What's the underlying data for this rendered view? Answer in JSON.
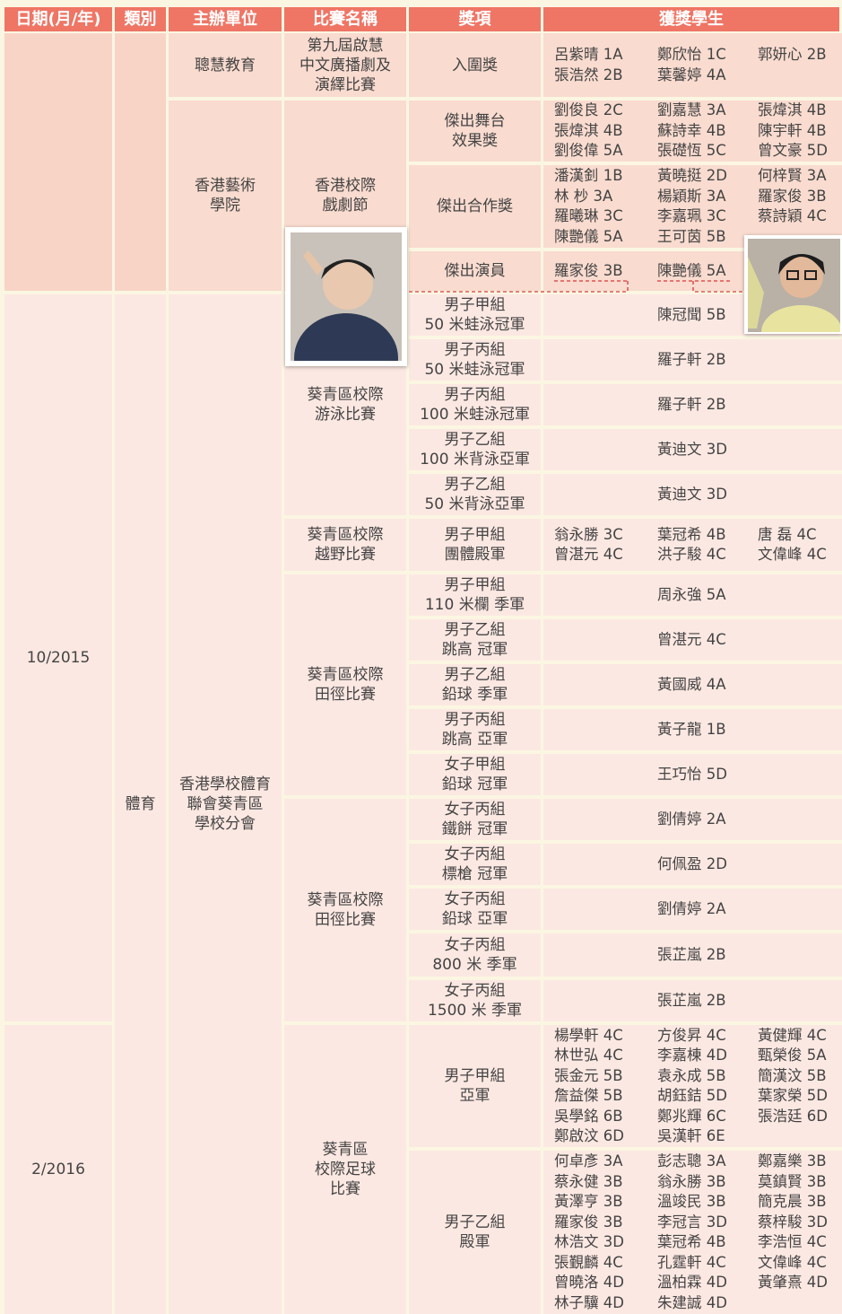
{
  "header": [
    "日期(月/年)",
    "類別",
    "主辦單位",
    "比賽名稱",
    "獎項",
    "獲獎學生"
  ],
  "dates": [
    "10/2015",
    "2/2016"
  ],
  "category": [
    "體育"
  ],
  "organizers": [
    "聰慧教育",
    "香港藝術\n學院",
    "香港學校體育\n聯會葵青區\n學校分會"
  ],
  "competitions": [
    "第九屆啟慧\n中文廣播劇及\n演繹比賽",
    "香港校際\n戲劇節",
    "葵青區校際\n游泳比賽",
    "葵青區校際\n越野比賽",
    "葵青區校際\n田徑比賽",
    "葵青區校際\n田徑比賽",
    "葵青區\n校際足球\n比賽"
  ],
  "rows": [
    {
      "award": "入圍獎",
      "students": [
        "呂紫晴 1A",
        "鄭欣怡 1C",
        "郭妍心 2B",
        "張浩然 2B",
        "葉馨婷 4A"
      ]
    },
    {
      "award": "傑出舞台\n效果獎",
      "students": [
        "劉俊良 2C",
        "劉嘉慧 3A",
        "張煒淇 4B",
        "張煒淇 4B",
        "蘇詩幸 4B",
        "陳宇軒 4B",
        "劉俊偉 5A",
        "張礎恆 5C",
        "曾文豪 5D"
      ]
    },
    {
      "award": "傑出合作獎",
      "students": [
        "潘漢釗 1B",
        "黃曉挺 2D",
        "何梓賢 3A",
        "林 杪 3A",
        "楊穎斯 3A",
        "羅家俊 3B",
        "羅曦琳 3C",
        "李嘉珮 3C",
        "蔡詩穎 4C",
        "陳艷儀 5A",
        "王可茵 5B"
      ]
    },
    {
      "award": "傑出演員",
      "students": [
        "羅家俊 3B",
        "陳艷儀 5A"
      ]
    },
    {
      "award": "男子甲組\n50 米蛙泳冠軍",
      "students": [
        "陳冠聞 5B"
      ]
    },
    {
      "award": "男子丙組\n50 米蛙泳冠軍",
      "students": [
        "羅子軒 2B"
      ]
    },
    {
      "award": "男子丙組\n100 米蛙泳冠軍",
      "students": [
        "羅子軒 2B"
      ]
    },
    {
      "award": "男子乙組\n100 米背泳亞軍",
      "students": [
        "黃迪文 3D"
      ]
    },
    {
      "award": "男子乙組\n50 米背泳亞軍",
      "students": [
        "黃迪文 3D"
      ]
    },
    {
      "award": "男子甲組\n團體殿軍",
      "students": [
        "翁永勝 3C",
        "葉冠希 4B",
        "唐 磊 4C",
        "曾湛元 4C",
        "洪子駿 4C",
        "文偉峰 4C"
      ]
    },
    {
      "award": "男子甲組\n110 米欄 季軍",
      "students": [
        "周永強 5A"
      ]
    },
    {
      "award": "男子乙組\n跳高 冠軍",
      "students": [
        "曾湛元 4C"
      ]
    },
    {
      "award": "男子乙組\n鉛球 季軍",
      "students": [
        "黃國威 4A"
      ]
    },
    {
      "award": "男子丙組\n跳高 亞軍",
      "students": [
        "黃子龍 1B"
      ]
    },
    {
      "award": "女子甲組\n鉛球 冠軍",
      "students": [
        "王巧怡 5D"
      ]
    },
    {
      "award": "女子丙組\n鐵餅 冠軍",
      "students": [
        "劉倩婷 2A"
      ]
    },
    {
      "award": "女子丙組\n標槍 冠軍",
      "students": [
        "何佩盈 2D"
      ]
    },
    {
      "award": "女子丙組\n鉛球 亞軍",
      "students": [
        "劉倩婷 2A"
      ]
    },
    {
      "award": "女子丙組\n800 米 季軍",
      "students": [
        "張芷嵐 2B"
      ]
    },
    {
      "award": "女子丙組\n1500 米 季軍",
      "students": [
        "張芷嵐 2B"
      ]
    },
    {
      "award": "男子甲組\n亞軍",
      "students": [
        "楊學軒 4C",
        "方俊昇 4C",
        "黃健輝 4C",
        "林世弘 4C",
        "李嘉棟 4D",
        "甄榮俊 5A",
        "張金元 5B",
        "袁永成 5B",
        "簡漢汶 5B",
        "詹益傑 5B",
        "胡鈺銡 5D",
        "葉家榮 5D",
        "吳學銘 6B",
        "鄭兆輝 6C",
        "張浩廷 6D",
        "鄭啟汶 6D",
        "吳漢軒 6E"
      ]
    },
    {
      "award": "男子乙組\n殿軍",
      "students": [
        "何卓彥 3A",
        "彭志聰 3A",
        "鄭嘉樂 3B",
        "蔡永健 3B",
        "翁永勝 3B",
        "莫鎮賢 3B",
        "黃澤亨 3B",
        "溫竣民 3B",
        "簡克晨 3B",
        "羅家俊 3B",
        "李冠言 3D",
        "蔡梓駿 3D",
        "林浩文 3D",
        "葉冠希 4B",
        "李浩恒 4C",
        "張覲麟 4C",
        "孔霆軒 4C",
        "文偉峰 4C",
        "曾曉洛 4D",
        "溫柏霖 4D",
        "黃肇熹 4D",
        "林子驥 4D",
        "朱建誠 4D"
      ]
    }
  ]
}
